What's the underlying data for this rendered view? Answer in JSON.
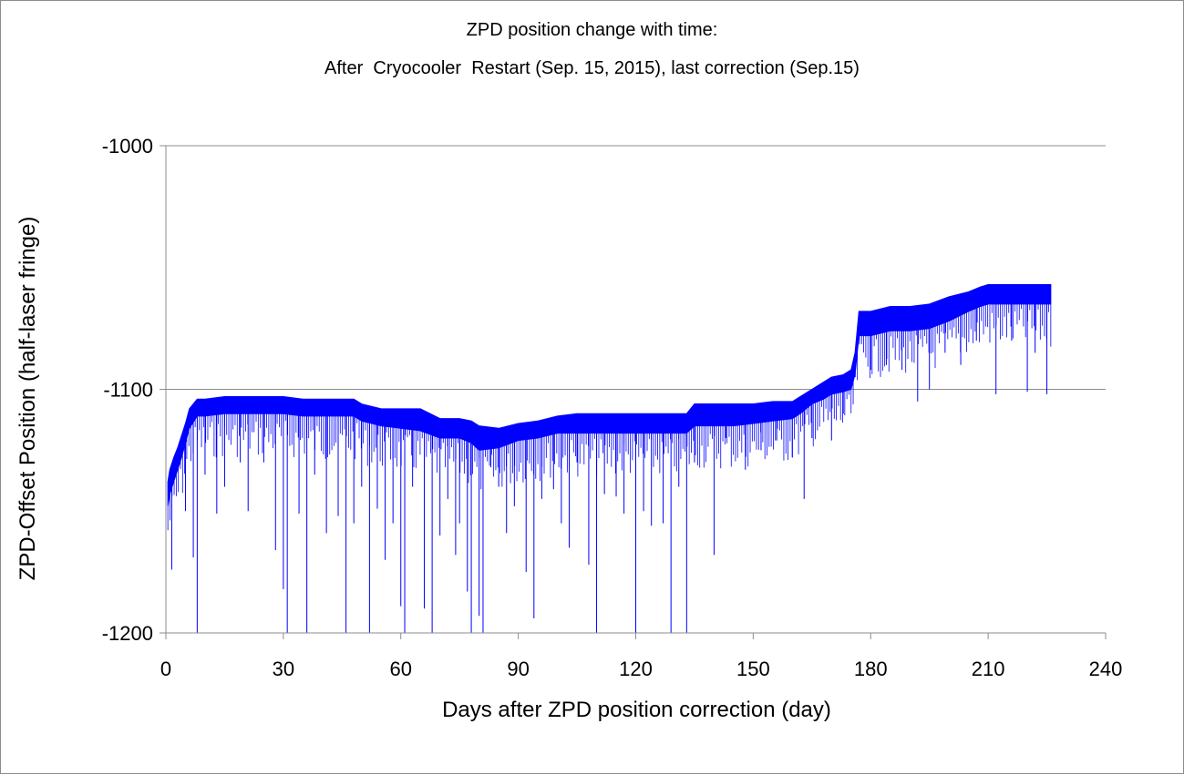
{
  "chart_data": {
    "type": "line",
    "title": "ZPD position change with time:",
    "subtitle": "After  Cryocooler  Restart (Sep. 15, 2015), last correction (Sep.15)",
    "xlabel": "Days after ZPD position correction  (day)",
    "ylabel": "ZPD-Offset Position (half-laser fringe)",
    "xlim": [
      0,
      240
    ],
    "ylim": [
      -1200,
      -1000
    ],
    "x_ticks": [
      "0",
      "30",
      "60",
      "90",
      "120",
      "150",
      "180",
      "210",
      "240"
    ],
    "y_ticks": [
      "-1000",
      "-1100",
      "-1200"
    ],
    "grid": "horizontal",
    "series_color": "#0000ff",
    "series": [
      {
        "x": [
          0.5,
          1,
          2,
          3,
          4,
          5,
          6,
          8,
          10,
          15,
          20,
          25,
          30,
          35,
          40,
          45,
          48,
          50,
          55,
          60,
          65,
          70,
          75,
          78,
          80,
          85,
          90,
          95,
          100,
          105,
          110,
          115,
          120,
          125,
          130,
          133,
          135,
          140,
          145,
          150,
          155,
          160,
          162,
          165,
          168,
          170,
          173,
          175,
          176,
          177,
          180,
          185,
          190,
          195,
          200,
          205,
          208,
          210,
          215,
          220,
          224,
          226
        ],
        "upper": [
          -1138,
          -1133,
          -1128,
          -1124,
          -1119,
          -1114,
          -1108,
          -1104,
          -1104,
          -1103,
          -1103,
          -1103,
          -1103,
          -1104,
          -1104,
          -1104,
          -1104,
          -1106,
          -1108,
          -1108,
          -1108,
          -1112,
          -1112,
          -1113,
          -1115,
          -1116,
          -1114,
          -1113,
          -1111,
          -1110,
          -1110,
          -1110,
          -1110,
          -1110,
          -1110,
          -1110,
          -1106,
          -1106,
          -1106,
          -1106,
          -1105,
          -1105,
          -1103,
          -1100,
          -1097,
          -1095,
          -1094,
          -1092,
          -1085,
          -1068,
          -1068,
          -1066,
          -1066,
          -1065,
          -1062,
          -1060,
          -1058,
          -1057,
          -1057,
          -1057,
          -1057,
          -1057
        ],
        "lower": [
          -1148,
          -1143,
          -1138,
          -1133,
          -1128,
          -1122,
          -1116,
          -1111,
          -1111,
          -1110,
          -1110,
          -1110,
          -1110,
          -1111,
          -1111,
          -1111,
          -1111,
          -1113,
          -1115,
          -1116,
          -1117,
          -1120,
          -1120,
          -1122,
          -1125,
          -1124,
          -1121,
          -1120,
          -1118,
          -1118,
          -1118,
          -1118,
          -1118,
          -1118,
          -1118,
          -1118,
          -1115,
          -1115,
          -1115,
          -1114,
          -1113,
          -1112,
          -1110,
          -1106,
          -1104,
          -1102,
          -1101,
          -1100,
          -1094,
          -1078,
          -1078,
          -1076,
          -1076,
          -1075,
          -1072,
          -1068,
          -1066,
          -1065,
          -1065,
          -1065,
          -1065,
          -1065
        ],
        "spikes": [
          [
            1.5,
            -1174
          ],
          [
            3,
            -1130
          ],
          [
            5,
            -1150
          ],
          [
            7,
            -1169
          ],
          [
            8,
            -1205
          ],
          [
            10,
            -1135
          ],
          [
            13,
            -1151
          ],
          [
            15,
            -1140
          ],
          [
            19,
            -1130
          ],
          [
            21,
            -1150
          ],
          [
            25,
            -1130
          ],
          [
            28,
            -1166
          ],
          [
            30,
            -1182
          ],
          [
            31,
            -1205
          ],
          [
            34,
            -1151
          ],
          [
            36,
            -1205
          ],
          [
            38,
            -1135
          ],
          [
            41,
            -1159
          ],
          [
            44,
            -1152
          ],
          [
            46,
            -1205
          ],
          [
            48,
            -1155
          ],
          [
            50,
            -1140
          ],
          [
            52,
            -1205
          ],
          [
            54,
            -1149
          ],
          [
            56,
            -1170
          ],
          [
            58,
            -1155
          ],
          [
            60,
            -1189
          ],
          [
            61,
            -1205
          ],
          [
            63,
            -1140
          ],
          [
            66,
            -1190
          ],
          [
            68,
            -1205
          ],
          [
            70,
            -1160
          ],
          [
            72,
            -1145
          ],
          [
            74,
            -1168
          ],
          [
            75,
            -1155
          ],
          [
            77,
            -1183
          ],
          [
            78,
            -1205
          ],
          [
            80,
            -1193
          ],
          [
            81,
            -1205
          ],
          [
            83,
            -1132
          ],
          [
            85,
            -1140
          ],
          [
            87,
            -1159
          ],
          [
            89,
            -1148
          ],
          [
            92,
            -1175
          ],
          [
            94,
            -1194
          ],
          [
            96,
            -1145
          ],
          [
            99,
            -1141
          ],
          [
            101,
            -1155
          ],
          [
            103,
            -1165
          ],
          [
            105,
            -1130
          ],
          [
            108,
            -1172
          ],
          [
            110,
            -1205
          ],
          [
            112,
            -1143
          ],
          [
            115,
            -1144
          ],
          [
            117,
            -1151
          ],
          [
            120,
            -1205
          ],
          [
            122,
            -1150
          ],
          [
            124,
            -1156
          ],
          [
            127,
            -1155
          ],
          [
            129,
            -1205
          ],
          [
            131,
            -1140
          ],
          [
            133,
            -1205
          ],
          [
            135,
            -1130
          ],
          [
            140,
            -1168
          ],
          [
            143,
            -1120
          ],
          [
            148,
            -1133
          ],
          [
            152,
            -1125
          ],
          [
            156,
            -1121
          ],
          [
            160,
            -1128
          ],
          [
            163,
            -1145
          ],
          [
            165,
            -1120
          ],
          [
            170,
            -1121
          ],
          [
            173,
            -1110
          ],
          [
            180,
            -1092
          ],
          [
            184,
            -1090
          ],
          [
            188,
            -1092
          ],
          [
            192,
            -1105
          ],
          [
            195,
            -1100
          ],
          [
            199,
            -1085
          ],
          [
            203,
            -1090
          ],
          [
            207,
            -1080
          ],
          [
            212,
            -1102
          ],
          [
            216,
            -1080
          ],
          [
            220,
            -1101
          ],
          [
            222,
            -1085
          ],
          [
            225,
            -1102
          ]
        ]
      }
    ]
  }
}
